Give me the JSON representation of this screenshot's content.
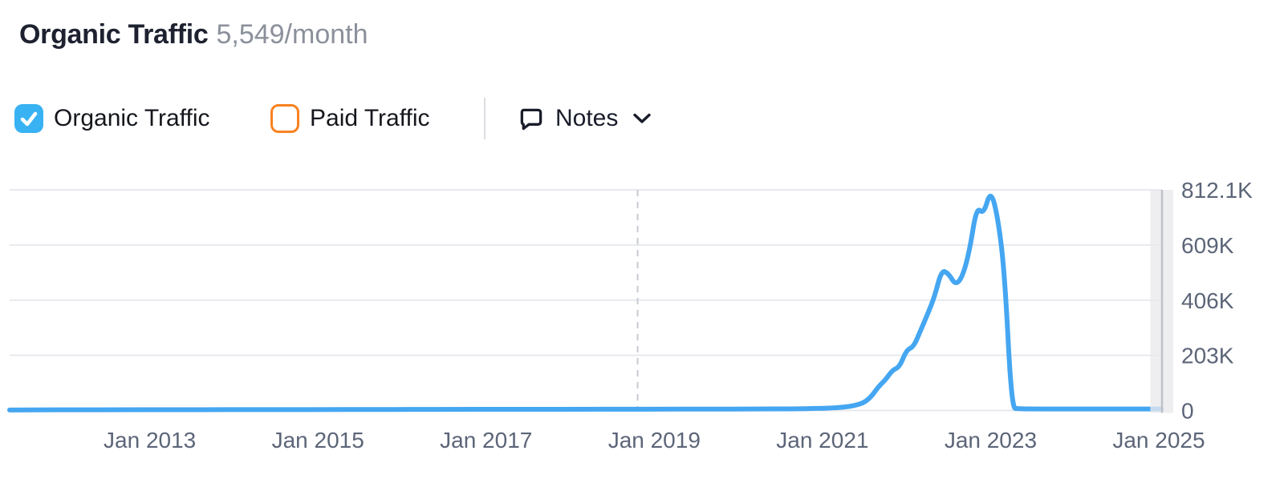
{
  "header": {
    "title": "Organic Traffic",
    "value": "5,549/month"
  },
  "controls": {
    "organic": {
      "label": "Organic Traffic",
      "checked": true,
      "color": "#38b2f3"
    },
    "paid": {
      "label": "Paid Traffic",
      "checked": false,
      "color": "#f8821f"
    },
    "notes": {
      "label": "Notes"
    }
  },
  "chart_data": {
    "type": "line",
    "title": "Organic Traffic",
    "xlabel": "",
    "ylabel": "",
    "grid": "horizontal",
    "legend_position": "none",
    "x_domain": [
      "2011-05",
      "2025-01-15"
    ],
    "ylim": [
      0,
      812100
    ],
    "x_ticks": [
      {
        "label": "Jan 2013",
        "date": "2013-01"
      },
      {
        "label": "Jan 2015",
        "date": "2015-01"
      },
      {
        "label": "Jan 2017",
        "date": "2017-01"
      },
      {
        "label": "Jan 2019",
        "date": "2019-01"
      },
      {
        "label": "Jan 2021",
        "date": "2021-01"
      },
      {
        "label": "Jan 2023",
        "date": "2023-01"
      },
      {
        "label": "Jan 2025",
        "date": "2025-01"
      }
    ],
    "y_ticks": [
      {
        "label": "812.1K",
        "value": 812100
      },
      {
        "label": "609K",
        "value": 609000
      },
      {
        "label": "406K",
        "value": 406000
      },
      {
        "label": "203K",
        "value": 203000
      },
      {
        "label": "0",
        "value": 0
      }
    ],
    "note_marker_date": "2018-10-20",
    "partial_data_band_start": "2024-11-25",
    "colors": {
      "line": "#45a6f1",
      "grid": "#e7e9ee",
      "axis_text": "#5c6578",
      "note_line": "#c7cad2",
      "band": "#e9e9ec",
      "band_edge": "#bfc1c7"
    },
    "series": [
      {
        "name": "Organic Traffic",
        "color": "#45a6f1",
        "points": [
          [
            "2011-05",
            1800
          ],
          [
            "2011-09",
            2200
          ],
          [
            "2012-03",
            2600
          ],
          [
            "2012-09",
            2900
          ],
          [
            "2013-03",
            3100
          ],
          [
            "2013-09",
            3000
          ],
          [
            "2014-03",
            3400
          ],
          [
            "2014-09",
            3300
          ],
          [
            "2015-03",
            3700
          ],
          [
            "2015-09",
            3600
          ],
          [
            "2016-03",
            4000
          ],
          [
            "2016-09",
            4100
          ],
          [
            "2017-03",
            4400
          ],
          [
            "2017-09",
            4300
          ],
          [
            "2018-03",
            4700
          ],
          [
            "2018-09",
            4800
          ],
          [
            "2019-03",
            5100
          ],
          [
            "2019-09",
            5000
          ],
          [
            "2020-03",
            5400
          ],
          [
            "2020-09",
            6200
          ],
          [
            "2021-01",
            8000
          ],
          [
            "2021-02",
            9000
          ],
          [
            "2021-03",
            10500
          ],
          [
            "2021-04",
            12500
          ],
          [
            "2021-05",
            15500
          ],
          [
            "2021-06",
            21000
          ],
          [
            "2021-07",
            30000
          ],
          [
            "2021-08",
            52000
          ],
          [
            "2021-09",
            88000
          ],
          [
            "2021-10",
            113000
          ],
          [
            "2021-11",
            149000
          ],
          [
            "2021-12",
            160000
          ],
          [
            "2022-01",
            223000
          ],
          [
            "2022-02",
            234000
          ],
          [
            "2022-03",
            294000
          ],
          [
            "2022-04",
            354000
          ],
          [
            "2022-05",
            419000
          ],
          [
            "2022-06",
            517000
          ],
          [
            "2022-07",
            504000
          ],
          [
            "2022-08",
            461000
          ],
          [
            "2022-09",
            493000
          ],
          [
            "2022-10",
            589000
          ],
          [
            "2022-11",
            749000
          ],
          [
            "2022-12",
            722000
          ],
          [
            "2023-01",
            812100
          ],
          [
            "2023-02",
            716000
          ],
          [
            "2023-03",
            508000
          ],
          [
            "2023-04",
            9500
          ],
          [
            "2023-05",
            6200
          ],
          [
            "2023-07",
            5800
          ],
          [
            "2023-10",
            5500
          ],
          [
            "2024-01",
            5600
          ],
          [
            "2024-04",
            5400
          ],
          [
            "2024-07",
            5500
          ],
          [
            "2024-09",
            5400
          ],
          [
            "2024-11",
            5549
          ],
          [
            "2025-01-12",
            5500
          ]
        ]
      }
    ]
  }
}
